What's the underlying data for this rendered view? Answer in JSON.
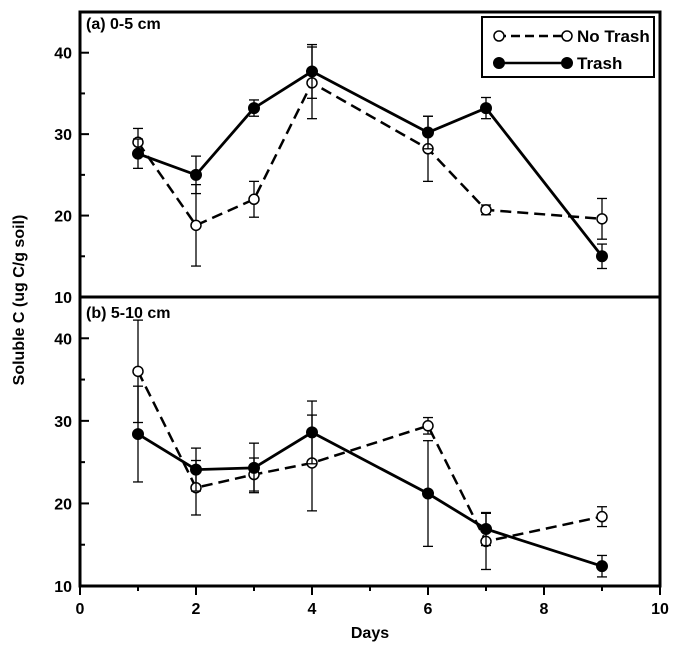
{
  "chart_data": {
    "type": "line",
    "xlabel": "Days",
    "ylabel": "Soluble C (ug C/g soil)",
    "xlim": [
      0,
      10
    ],
    "x_ticks": [
      "0",
      "2",
      "4",
      "6",
      "8",
      "10"
    ],
    "legend": {
      "placement": "top-right",
      "entries": [
        "No Trash",
        "Trash"
      ]
    },
    "panels": [
      {
        "label": "(a) 0-5 cm",
        "ylim": [
          10,
          45
        ],
        "y_ticks": [
          "10",
          "20",
          "30",
          "40"
        ],
        "series": [
          {
            "name": "No Trash",
            "style": "dashed-open",
            "x": [
              1,
              2,
              3,
              4,
              6,
              7,
              9
            ],
            "y": [
              29.0,
              18.8,
              22.0,
              36.3,
              28.2,
              20.7,
              19.6
            ],
            "err": [
              1.7,
              5.0,
              2.2,
              4.4,
              4.0,
              0.6,
              2.5
            ]
          },
          {
            "name": "Trash",
            "style": "solid-filled",
            "x": [
              1,
              2,
              3,
              4,
              6,
              7,
              9
            ],
            "y": [
              27.6,
              25.0,
              33.2,
              37.7,
              30.2,
              33.2,
              15.0
            ],
            "err": [
              1.8,
              2.3,
              1.0,
              3.3,
              2.0,
              1.3,
              1.5
            ]
          }
        ]
      },
      {
        "label": "(b) 5-10 cm",
        "ylim": [
          10,
          45
        ],
        "y_ticks": [
          "10",
          "20",
          "30",
          "40"
        ],
        "series": [
          {
            "name": "No Trash",
            "style": "dashed-open",
            "x": [
              1,
              2,
              3,
              4,
              6,
              7,
              9
            ],
            "y": [
              36.0,
              21.9,
              23.5,
              24.9,
              29.4,
              15.4,
              18.4
            ],
            "err": [
              6.2,
              3.3,
              2.0,
              5.8,
              1.0,
              3.4,
              1.2
            ]
          },
          {
            "name": "Trash",
            "style": "solid-filled",
            "x": [
              1,
              2,
              3,
              4,
              6,
              7,
              9
            ],
            "y": [
              28.4,
              24.1,
              24.3,
              28.6,
              21.2,
              16.9,
              12.4
            ],
            "err": [
              5.8,
              2.6,
              3.0,
              3.8,
              6.4,
              2.0,
              1.3
            ]
          }
        ]
      }
    ],
    "colors": {
      "line": "#000000",
      "background": "#ffffff"
    }
  }
}
